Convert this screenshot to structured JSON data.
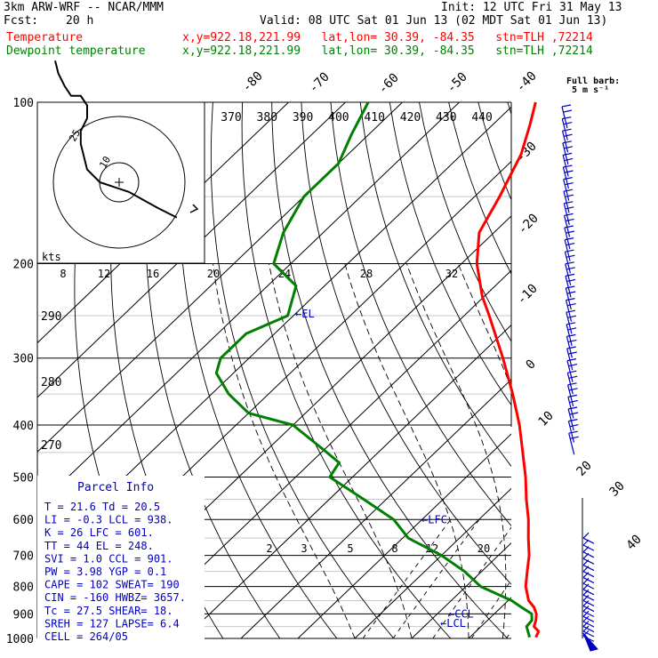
{
  "header": {
    "model": "3km ARW-WRF -- NCAR/MMM",
    "init": "Init: 12 UTC Fri 31 May 13",
    "fcst_label": "Fcst:",
    "fcst_value": "20 h",
    "valid": "Valid: 08 UTC Sat 01 Jun 13 (02 MDT Sat 01 Jun 13)"
  },
  "legend": [
    {
      "label": "Temperature",
      "info": "x,y=922.18,221.99   lat,lon= 30.39, -84.35   stn=TLH ,72214",
      "color": "#ff0000"
    },
    {
      "label": "Dewpoint temperature",
      "info": "x,y=922.18,221.99   lat,lon= 30.39, -84.35   stn=TLH ,72214",
      "color": "#008000"
    }
  ],
  "barb_key": {
    "line1": "Full barb:",
    "line2": "5 m s⁻¹"
  },
  "hodograph": {
    "units": "kts",
    "ring_labels": [
      "10",
      "25"
    ]
  },
  "parcel_info": {
    "title": "Parcel Info",
    "rows": [
      "T   =   21.6  Td =  20.5",
      "LI  =   -0.3  LCL =  938.",
      "K   =     26  LFC =  601.",
      "TT  =     44  EL  =  248.",
      "SVI =    1.0  CCL =  901.",
      "PW  =   3.98  YGP =   0.1",
      "CAPE =   102  SWEAT=  190",
      "CIN  =  -160  HWBZ= 3657.",
      "Tc  =   27.5  SHEAR=  18.",
      "SREH =   127  LAPSE=  6.4",
      "CELL = 264/05"
    ]
  },
  "chart_data": {
    "type": "line",
    "chart_kind": "Skew-T log-P diagram",
    "y_axis": {
      "label": "",
      "unit": "hPa",
      "scale": "log",
      "range": [
        1000,
        100
      ],
      "ticks": [
        100,
        200,
        300,
        400,
        500,
        600,
        700,
        800,
        900,
        1000
      ]
    },
    "isotherm_labels": [
      "-80",
      "-70",
      "-60",
      "-50",
      "-40",
      "-30",
      "-20",
      "-10",
      "0",
      "10",
      "20",
      "30",
      "40"
    ],
    "theta_labels": [
      "370",
      "380",
      "390",
      "400",
      "410",
      "420",
      "430",
      "440"
    ],
    "theta_e_labels": [
      "290",
      "280",
      "270"
    ],
    "mixing_ratio_upper_labels": [
      "8",
      "12",
      "16",
      "20",
      "24",
      "28",
      "32"
    ],
    "mixing_ratio_lower_labels": [
      "2",
      "3",
      "5",
      "8",
      "12",
      "20"
    ],
    "level_markers": [
      {
        "label": "EL",
        "pressure": 248
      },
      {
        "label": "LFC",
        "pressure": 601
      },
      {
        "label": "CCL",
        "pressure": 901
      },
      {
        "label": "LCL",
        "pressure": 938
      }
    ],
    "series": [
      {
        "name": "Temperature",
        "color": "#ff0000",
        "unit": "°C",
        "points": [
          [
            995,
            21.6
          ],
          [
            970,
            21.0
          ],
          [
            950,
            19.3
          ],
          [
            925,
            18.5
          ],
          [
            900,
            17.4
          ],
          [
            875,
            15.8
          ],
          [
            850,
            13.6
          ],
          [
            800,
            10.5
          ],
          [
            750,
            8.0
          ],
          [
            700,
            5.4
          ],
          [
            650,
            2.1
          ],
          [
            600,
            -1.3
          ],
          [
            550,
            -5.4
          ],
          [
            500,
            -9.6
          ],
          [
            450,
            -14.6
          ],
          [
            400,
            -20.2
          ],
          [
            350,
            -27.1
          ],
          [
            300,
            -35.4
          ],
          [
            250,
            -45.6
          ],
          [
            230,
            -50.4
          ],
          [
            200,
            -57.3
          ],
          [
            175,
            -62.6
          ],
          [
            150,
            -65.6
          ],
          [
            125,
            -69.6
          ],
          [
            110,
            -73.5
          ],
          [
            100,
            -76.6
          ]
        ]
      },
      {
        "name": "Dewpoint temperature",
        "color": "#008000",
        "unit": "°C",
        "points": [
          [
            995,
            20.5
          ],
          [
            950,
            18.0
          ],
          [
            925,
            17.8
          ],
          [
            900,
            16.6
          ],
          [
            875,
            13.6
          ],
          [
            850,
            10.6
          ],
          [
            800,
            2.6
          ],
          [
            750,
            -3.0
          ],
          [
            700,
            -10.0
          ],
          [
            650,
            -19.0
          ],
          [
            600,
            -25.0
          ],
          [
            550,
            -34.0
          ],
          [
            500,
            -44.0
          ],
          [
            470,
            -45.0
          ],
          [
            450,
            -49.0
          ],
          [
            400,
            -60.0
          ],
          [
            380,
            -70.0
          ],
          [
            350,
            -77.0
          ],
          [
            320,
            -83.0
          ],
          [
            300,
            -85.0
          ],
          [
            270,
            -85.0
          ],
          [
            250,
            -81.0
          ],
          [
            220,
            -85.0
          ],
          [
            200,
            -93.0
          ],
          [
            175,
            -97.0
          ],
          [
            150,
            -100.0
          ],
          [
            130,
            -100.0
          ],
          [
            115,
            -103.0
          ],
          [
            100,
            -106.0
          ]
        ]
      }
    ],
    "hodograph_trace": [
      [
        18,
        -11
      ],
      [
        12,
        -8
      ],
      [
        3,
        -3
      ],
      [
        -6,
        0
      ],
      [
        -10,
        4
      ],
      [
        -11,
        8
      ],
      [
        -12,
        12
      ],
      [
        -12,
        16
      ],
      [
        -10,
        20
      ],
      [
        -10,
        24
      ],
      [
        -12,
        27
      ],
      [
        -15,
        27
      ],
      [
        -17,
        30
      ],
      [
        -19,
        34
      ],
      [
        -20,
        38
      ]
    ]
  },
  "colors": {
    "temperature": "#ff0000",
    "dewpoint": "#008000",
    "annotation": "#0000c0",
    "wind": "#0000c0"
  }
}
